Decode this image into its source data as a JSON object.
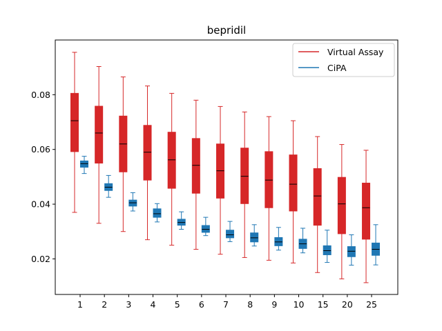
{
  "chart_data": {
    "type": "boxplot",
    "title": "bepridil",
    "xlabel": "",
    "ylabel": "",
    "categories": [
      "1",
      "2",
      "3",
      "4",
      "5",
      "6",
      "7",
      "8",
      "9",
      "10",
      "15",
      "20",
      "25"
    ],
    "ylim": [
      0.007,
      0.1
    ],
    "yticks": [
      0.02,
      0.04,
      0.06,
      0.08
    ],
    "ytick_labels": [
      "0.02",
      "0.04",
      "0.06",
      "0.08"
    ],
    "grid": false,
    "legend_position": "top-right",
    "series": [
      {
        "name": "Virtual Assay",
        "color": "#d62728",
        "boxes": [
          {
            "min": 0.037,
            "q1": 0.0592,
            "median": 0.0705,
            "q3": 0.0805,
            "max": 0.0955
          },
          {
            "min": 0.033,
            "q1": 0.055,
            "median": 0.066,
            "q3": 0.0758,
            "max": 0.0903
          },
          {
            "min": 0.03,
            "q1": 0.0518,
            "median": 0.062,
            "q3": 0.0722,
            "max": 0.0865
          },
          {
            "min": 0.027,
            "q1": 0.0488,
            "median": 0.059,
            "q3": 0.0688,
            "max": 0.0832
          },
          {
            "min": 0.025,
            "q1": 0.0458,
            "median": 0.0562,
            "q3": 0.0663,
            "max": 0.0805
          },
          {
            "min": 0.0235,
            "q1": 0.044,
            "median": 0.0542,
            "q3": 0.064,
            "max": 0.078
          },
          {
            "min": 0.0217,
            "q1": 0.0422,
            "median": 0.0522,
            "q3": 0.062,
            "max": 0.0757
          },
          {
            "min": 0.0205,
            "q1": 0.0402,
            "median": 0.0502,
            "q3": 0.0605,
            "max": 0.0737
          },
          {
            "min": 0.0195,
            "q1": 0.0387,
            "median": 0.0488,
            "q3": 0.0592,
            "max": 0.072
          },
          {
            "min": 0.0185,
            "q1": 0.0375,
            "median": 0.0473,
            "q3": 0.058,
            "max": 0.0705
          },
          {
            "min": 0.015,
            "q1": 0.0323,
            "median": 0.043,
            "q3": 0.053,
            "max": 0.0647
          },
          {
            "min": 0.0127,
            "q1": 0.0292,
            "median": 0.0401,
            "q3": 0.0498,
            "max": 0.0618
          },
          {
            "min": 0.0113,
            "q1": 0.0272,
            "median": 0.0387,
            "q3": 0.0477,
            "max": 0.0597
          }
        ]
      },
      {
        "name": "CiPA",
        "color": "#1f77b4",
        "boxes": [
          {
            "min": 0.0512,
            "q1": 0.0535,
            "median": 0.0548,
            "q3": 0.0558,
            "max": 0.0575
          },
          {
            "min": 0.0425,
            "q1": 0.045,
            "median": 0.0462,
            "q3": 0.0475,
            "max": 0.0505
          },
          {
            "min": 0.0375,
            "q1": 0.0393,
            "median": 0.0405,
            "q3": 0.0415,
            "max": 0.0442
          },
          {
            "min": 0.0335,
            "q1": 0.0352,
            "median": 0.0365,
            "q3": 0.0383,
            "max": 0.0402
          },
          {
            "min": 0.0308,
            "q1": 0.0323,
            "median": 0.0333,
            "q3": 0.0345,
            "max": 0.0372
          },
          {
            "min": 0.0285,
            "q1": 0.0297,
            "median": 0.0308,
            "q3": 0.0322,
            "max": 0.0352
          },
          {
            "min": 0.0263,
            "q1": 0.0277,
            "median": 0.0288,
            "q3": 0.0305,
            "max": 0.0337
          },
          {
            "min": 0.0247,
            "q1": 0.0262,
            "median": 0.0277,
            "q3": 0.0295,
            "max": 0.0325
          },
          {
            "min": 0.0232,
            "q1": 0.0248,
            "median": 0.0262,
            "q3": 0.0278,
            "max": 0.0315
          },
          {
            "min": 0.0222,
            "q1": 0.0238,
            "median": 0.0255,
            "q3": 0.0272,
            "max": 0.0312
          },
          {
            "min": 0.0187,
            "q1": 0.0215,
            "median": 0.023,
            "q3": 0.0248,
            "max": 0.0305
          },
          {
            "min": 0.0177,
            "q1": 0.0208,
            "median": 0.0228,
            "q3": 0.0245,
            "max": 0.0288
          },
          {
            "min": 0.0178,
            "q1": 0.0213,
            "median": 0.0235,
            "q3": 0.0258,
            "max": 0.0325
          }
        ]
      }
    ]
  }
}
